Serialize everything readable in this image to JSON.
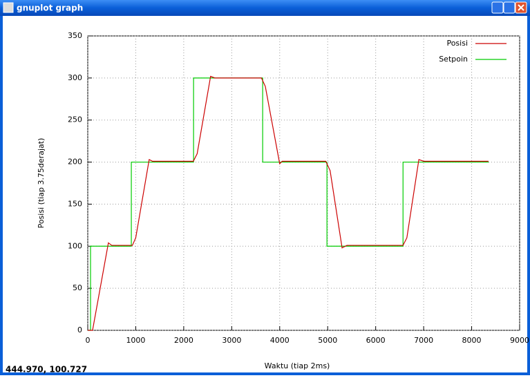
{
  "window": {
    "title": "gnuplot graph"
  },
  "status_text": "444.970,  100.727",
  "chart_data": {
    "type": "line",
    "xlabel": "Waktu (tiap 2ms)",
    "ylabel": "Posisi (tiap 3.75derajat)",
    "xlim": [
      0,
      9000
    ],
    "xticks": [
      0,
      1000,
      2000,
      3000,
      4000,
      5000,
      6000,
      7000,
      8000,
      9000
    ],
    "ylim": [
      0,
      350
    ],
    "yticks": [
      0,
      50,
      100,
      150,
      200,
      250,
      300,
      350
    ],
    "grid": true,
    "legend": "top-right",
    "series": [
      {
        "name": "Posisi",
        "color": "#cc0000",
        "x": [
          0,
          100,
          430,
          500,
          930,
          1000,
          1280,
          1350,
          2200,
          2280,
          2560,
          2650,
          3620,
          3700,
          4000,
          4050,
          4960,
          5050,
          5300,
          5400,
          6570,
          6650,
          6900,
          7000,
          8350
        ],
        "values": [
          0,
          0,
          104,
          101,
          101,
          110,
          203,
          201,
          201,
          210,
          302,
          300,
          300,
          290,
          198,
          201,
          201,
          190,
          98,
          101,
          101,
          110,
          203,
          201,
          201
        ]
      },
      {
        "name": "Setpoin",
        "color": "#00cc00",
        "x": [
          0,
          58,
          58,
          908,
          908,
          2205,
          2205,
          3645,
          3645,
          4985,
          4985,
          6570,
          6570,
          8357
        ],
        "values": [
          0,
          0,
          100,
          100,
          200,
          200,
          300,
          300,
          200,
          200,
          100,
          100,
          200,
          200
        ]
      }
    ]
  }
}
